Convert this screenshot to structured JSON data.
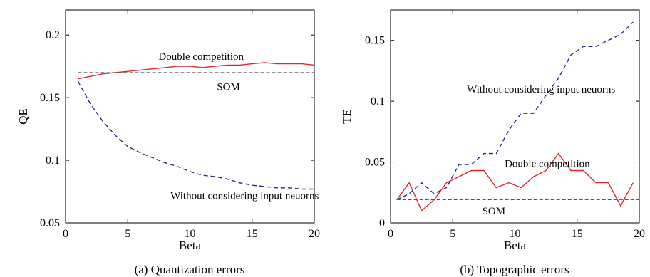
{
  "colors": {
    "double_competition": "#e8232a",
    "without_input": "#1c2c8f",
    "som": "#555555",
    "axes": "#000000"
  },
  "chart_data": [
    {
      "type": "line",
      "caption": "(a) Quantization errors",
      "xlabel": "Beta",
      "ylabel": "QE",
      "xlim": [
        0,
        20
      ],
      "ylim": [
        0.05,
        0.22
      ],
      "xticks": [
        0,
        5,
        10,
        15,
        20
      ],
      "xtick_labels": [
        "0",
        "5",
        "10",
        "15",
        "20"
      ],
      "yticks": [
        0.05,
        0.1,
        0.15,
        0.2
      ],
      "ytick_labels": [
        "0.05",
        "0.1",
        "0.15",
        "0.2"
      ],
      "grid": false,
      "series": [
        {
          "key": "double",
          "name": "Double competition",
          "style": "solid",
          "color_key": "double_competition",
          "x": [
            1,
            2,
            3,
            4,
            5,
            6,
            7,
            8,
            9,
            10,
            11,
            12,
            13,
            14,
            15,
            16,
            17,
            18,
            19,
            20
          ],
          "y": [
            0.165,
            0.167,
            0.169,
            0.17,
            0.171,
            0.172,
            0.173,
            0.174,
            0.175,
            0.175,
            0.174,
            0.175,
            0.176,
            0.176,
            0.177,
            0.178,
            0.177,
            0.177,
            0.177,
            0.176
          ]
        },
        {
          "key": "without",
          "name": "Without considering input neuorns",
          "style": "dashed",
          "color_key": "without_input",
          "x": [
            1,
            2,
            3,
            4,
            5,
            6,
            7,
            8,
            9,
            10,
            11,
            12,
            13,
            14,
            15,
            16,
            17,
            18,
            19,
            20
          ],
          "y": [
            0.163,
            0.145,
            0.131,
            0.12,
            0.111,
            0.106,
            0.102,
            0.098,
            0.095,
            0.091,
            0.088,
            0.087,
            0.085,
            0.082,
            0.08,
            0.079,
            0.078,
            0.078,
            0.077,
            0.077
          ]
        },
        {
          "key": "som",
          "name": "SOM",
          "style": "dashed",
          "color_key": "som",
          "x": [
            1,
            20
          ],
          "y": [
            0.17,
            0.17
          ]
        }
      ],
      "annotations": [
        {
          "text": "Double competition",
          "x": 10.9,
          "y": 0.183
        },
        {
          "text": "SOM",
          "x": 13.1,
          "y": 0.159
        },
        {
          "text": "Without considering input neuorns",
          "x": 14.4,
          "y": 0.072
        }
      ]
    },
    {
      "type": "line",
      "caption": "(b) Topographic errors",
      "xlabel": "Beta",
      "ylabel": "TE",
      "xlim": [
        0,
        20
      ],
      "ylim": [
        0,
        0.175
      ],
      "xticks": [
        0,
        5,
        10,
        15,
        20
      ],
      "xtick_labels": [
        "0",
        "5",
        "10",
        "15",
        "20"
      ],
      "yticks": [
        0,
        0.05,
        0.1,
        0.15
      ],
      "ytick_labels": [
        "0",
        "0.05",
        "0.1",
        "0.15"
      ],
      "grid": false,
      "series": [
        {
          "key": "double",
          "name": "Double competition",
          "style": "solid",
          "color_key": "double_competition",
          "x": [
            0.5,
            1.5,
            2.5,
            3.5,
            4.5,
            5.5,
            6.5,
            7.5,
            8.5,
            9.5,
            10.5,
            11.5,
            12.5,
            13.5,
            14.5,
            15.5,
            16.5,
            17.5,
            18.5,
            19.5
          ],
          "y": [
            0.019,
            0.033,
            0.01,
            0.019,
            0.033,
            0.038,
            0.043,
            0.043,
            0.029,
            0.033,
            0.029,
            0.038,
            0.043,
            0.057,
            0.043,
            0.043,
            0.033,
            0.033,
            0.014,
            0.033
          ]
        },
        {
          "key": "without",
          "name": "Without considering input neuorns",
          "style": "dashed",
          "color_key": "without_input",
          "x": [
            0.5,
            1.5,
            2.5,
            3.5,
            4.5,
            5.5,
            6.5,
            7.5,
            8.5,
            9.5,
            10.5,
            11.5,
            12.5,
            13.5,
            14.5,
            15.5,
            16.5,
            17.5,
            18.5,
            19.5
          ],
          "y": [
            0.019,
            0.024,
            0.033,
            0.024,
            0.029,
            0.048,
            0.048,
            0.057,
            0.057,
            0.076,
            0.09,
            0.09,
            0.105,
            0.119,
            0.138,
            0.145,
            0.145,
            0.15,
            0.155,
            0.165
          ]
        },
        {
          "key": "som",
          "name": "SOM",
          "style": "dashed",
          "color_key": "som",
          "x": [
            0.5,
            20
          ],
          "y": [
            0.019,
            0.019
          ]
        }
      ],
      "annotations": [
        {
          "text": "Without considering input neuorns",
          "x": 12.1,
          "y": 0.11
        },
        {
          "text": "Double competition",
          "x": 12.6,
          "y": 0.049
        },
        {
          "text": "SOM",
          "x": 8.3,
          "y": 0.01
        }
      ]
    }
  ]
}
